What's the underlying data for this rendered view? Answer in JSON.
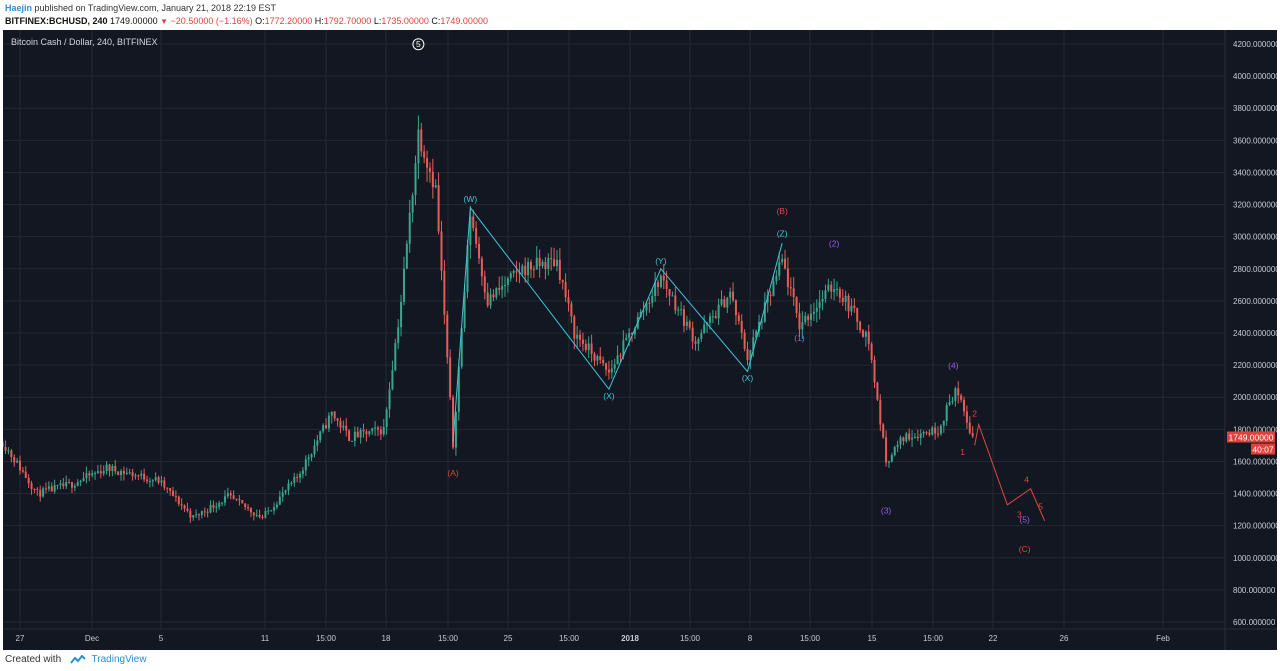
{
  "header": {
    "author": "Haejin",
    "published_text": "published on TradingView.com, January 21, 2018 22:19 EST",
    "symbol": "BITFINEX:BCHUSD, 240",
    "last": "1749.00000",
    "change": "−20.50000 (−1.16%)",
    "ohlc": [
      {
        "k": "O:",
        "v": "1772.20000"
      },
      {
        "k": "H:",
        "v": "1792.70000"
      },
      {
        "k": "L:",
        "v": "1735.00000"
      },
      {
        "k": "C:",
        "v": "1749.00000"
      }
    ]
  },
  "footer": {
    "created_with": "Created with",
    "brand": "TradingView"
  },
  "colors": {
    "background": "#131722",
    "grid": "#232834",
    "up": "#3aa58c",
    "down": "#e55d57",
    "wave_cyan": "#40c4d6",
    "wave_red": "#e1463f",
    "wave_purple": "#9b5de5",
    "price_tag": "#e0413a",
    "axis_text": "#c8cbd2"
  },
  "chart_data": {
    "type": "candlestick",
    "title": "Bitcoin Cash / Dollar, 240, BITFINEX",
    "current_price": "1749.00000",
    "countdown": "40:07",
    "ylim": [
      540,
      4300
    ],
    "y_ticks": [
      "600.000000",
      "800.000000",
      "1000.000000",
      "1200.000000",
      "1400.000000",
      "1600.000000",
      "1800.000000",
      "2000.000000",
      "2200.000000",
      "2400.000000",
      "2600.000000",
      "2800.000000",
      "3000.000000",
      "3200.000000",
      "3400.000000",
      "3600.000000",
      "3800.000000",
      "4000.000000",
      "4200.000000"
    ],
    "x_ticks": [
      "27",
      "Dec",
      "5",
      "11",
      "15:00",
      "18",
      "15:00",
      "25",
      "15:00",
      "2018",
      "15:00",
      "8",
      "15:00",
      "15",
      "15:00",
      "22",
      "26",
      "Feb"
    ],
    "price_anchors": [
      {
        "x": "Nov 26",
        "price": 1720
      },
      {
        "x": "Nov 27",
        "price": 1560
      },
      {
        "x": "Nov 28",
        "price": 1400
      },
      {
        "x": "Nov 30",
        "price": 1460
      },
      {
        "x": "Dec 2",
        "price": 1560
      },
      {
        "x": "Dec 5",
        "price": 1480
      },
      {
        "x": "Dec 7",
        "price": 1250
      },
      {
        "x": "Dec 9",
        "price": 1380
      },
      {
        "x": "Dec 11",
        "price": 1250
      },
      {
        "x": "Dec 13",
        "price": 1500
      },
      {
        "x": "Dec 15",
        "price": 1900
      },
      {
        "x": "Dec 16",
        "price": 1750
      },
      {
        "x": "Dec 18",
        "price": 1800
      },
      {
        "x": "Dec 19",
        "price": 2600
      },
      {
        "x": "Dec 20",
        "price": 3650
      },
      {
        "x": "Dec 21",
        "price": 3300
      },
      {
        "x": "Dec 22",
        "price": 1700
      },
      {
        "x": "Dec 23",
        "price": 3150
      },
      {
        "x": "Dec 24",
        "price": 2600
      },
      {
        "x": "Dec 26",
        "price": 2800
      },
      {
        "x": "Dec 28",
        "price": 2850
      },
      {
        "x": "Dec 29",
        "price": 2400
      },
      {
        "x": "Dec 31",
        "price": 2150
      },
      {
        "x": "Jan 1",
        "price": 2350
      },
      {
        "x": "Jan 3",
        "price": 2750
      },
      {
        "x": "Jan 5",
        "price": 2350
      },
      {
        "x": "Jan 7",
        "price": 2650
      },
      {
        "x": "Jan 8",
        "price": 2250
      },
      {
        "x": "Jan 10",
        "price": 2850
      },
      {
        "x": "Jan 11",
        "price": 2450
      },
      {
        "x": "Jan 13",
        "price": 2700
      },
      {
        "x": "Jan 14",
        "price": 2550
      },
      {
        "x": "Jan 15",
        "price": 2350
      },
      {
        "x": "Jan 16",
        "price": 1600
      },
      {
        "x": "Jan 17",
        "price": 1750
      },
      {
        "x": "Jan 19",
        "price": 1800
      },
      {
        "x": "Jan 20",
        "price": 2050
      },
      {
        "x": "Jan 21",
        "price": 1749
      }
    ],
    "wave_labels": [
      {
        "text": "5",
        "x": "Dec 20",
        "price": 4180,
        "color": "#ffffff",
        "circled": true
      },
      {
        "text": "(W)",
        "x": "Dec 23",
        "price": 3215,
        "color": "#40c4d6"
      },
      {
        "text": "(X)",
        "x": "Dec 31",
        "price": 1990,
        "color": "#40c4d6"
      },
      {
        "text": "(Y)",
        "x": "Jan 3",
        "price": 2830,
        "color": "#40c4d6"
      },
      {
        "text": "(X)",
        "x": "Jan 8",
        "price": 2100,
        "color": "#40c4d6"
      },
      {
        "text": "(Z)",
        "x": "Jan 10",
        "price": 3000,
        "color": "#40c4d6"
      },
      {
        "text": "(A)",
        "x": "Dec 22",
        "price": 1510,
        "color": "#e1463f"
      },
      {
        "text": "(B)",
        "x": "Jan 10",
        "price": 3140,
        "color": "#e1463f"
      },
      {
        "text": "(1)",
        "x": "Jan 11",
        "price": 2350,
        "color": "#9b5de5"
      },
      {
        "text": "(2)",
        "x": "Jan 13",
        "price": 2940,
        "color": "#9b5de5"
      },
      {
        "text": "(3)",
        "x": "Jan 16",
        "price": 1275,
        "color": "#9b5de5"
      },
      {
        "text": "(4)",
        "x": "Jan 20",
        "price": 2180,
        "color": "#9b5de5"
      },
      {
        "text": "(5)",
        "x": "Jan 24",
        "price": 1220,
        "color": "#9b5de5"
      },
      {
        "text": "(C)",
        "x": "Jan 24",
        "price": 1035,
        "color": "#e1463f"
      },
      {
        "text": "1",
        "x": "Jan 21",
        "price": 1640,
        "color": "#e1463f"
      },
      {
        "text": "2",
        "x": "Jan 21",
        "price": 1880,
        "color": "#e1463f"
      },
      {
        "text": "3",
        "x": "Jan 23",
        "price": 1250,
        "color": "#e1463f"
      },
      {
        "text": "4",
        "x": "Jan 24",
        "price": 1470,
        "color": "#e1463f"
      },
      {
        "text": "5",
        "x": "Jan 24",
        "price": 1300,
        "color": "#e1463f"
      }
    ],
    "cyan_path": [
      {
        "x": "Dec 22",
        "price": 1720
      },
      {
        "x": "Dec 23",
        "price": 3180
      },
      {
        "x": "Dec 31",
        "price": 2050
      },
      {
        "x": "Jan 3",
        "price": 2800
      },
      {
        "x": "Jan 8",
        "price": 2160
      },
      {
        "x": "Jan 10",
        "price": 2960
      }
    ],
    "red_projection": [
      {
        "x": "Jan 21",
        "price": 1700
      },
      {
        "x": "Jan 21",
        "price": 1830
      },
      {
        "x": "Jan 23",
        "price": 1330
      },
      {
        "x": "Jan 24",
        "price": 1430
      },
      {
        "x": "Jan 24",
        "price": 1230
      }
    ]
  }
}
